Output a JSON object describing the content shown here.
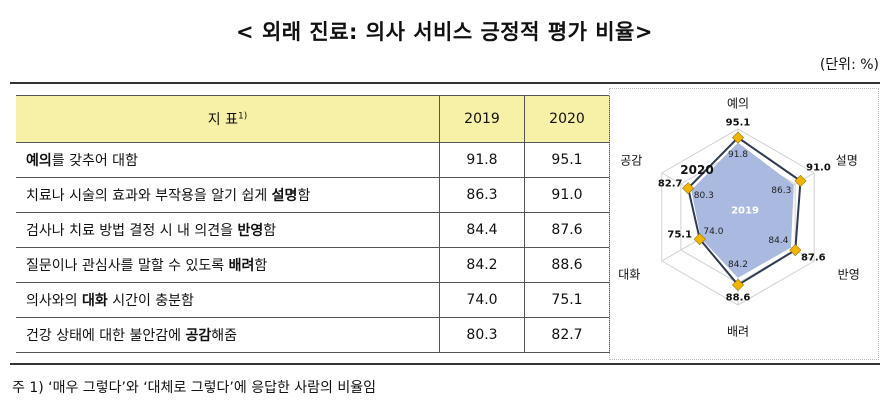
{
  "title": "< 외래 진료: 의사 서비스 긍정적 평가 비율>",
  "unit": "(단위: %)",
  "table": {
    "header": {
      "indicator": "지 표",
      "indicator_sup": "1)",
      "y2019": "2019",
      "y2020": "2020"
    },
    "rows": [
      {
        "pre": "",
        "bold": "예의",
        "post": "를 갖추어 대함",
        "v2019": "91.8",
        "v2020": "95.1"
      },
      {
        "pre": "치료나 시술의 효과와 부작용을 알기 쉽게 ",
        "bold": "설명",
        "post": "함",
        "v2019": "86.3",
        "v2020": "91.0"
      },
      {
        "pre": "검사나 치료 방법 결정 시 내 의견을 ",
        "bold": "반영",
        "post": "함",
        "v2019": "84.4",
        "v2020": "87.6"
      },
      {
        "pre": "질문이나 관심사를 말할 수 있도록 ",
        "bold": "배려",
        "post": "함",
        "v2019": "84.2",
        "v2020": "88.6"
      },
      {
        "pre": "의사와의 ",
        "bold": "대화",
        "post": " 시간이 충분함",
        "v2019": "74.0",
        "v2020": "75.1"
      },
      {
        "pre": "건강 상태에 대한 불안감에 ",
        "bold": "공감",
        "post": "해줌",
        "v2019": "80.3",
        "v2020": "82.7"
      }
    ]
  },
  "note": "주 1) ‘매우 그렇다’와 ‘대체로 그렇다’에 응답한 사람의 비율임",
  "chart_data": {
    "type": "radar",
    "axes": [
      "예의",
      "설명",
      "반영",
      "배려",
      "대화",
      "공감"
    ],
    "series": [
      {
        "name": "2019",
        "values": [
          91.8,
          86.3,
          84.4,
          84.2,
          74.0,
          80.3
        ],
        "color": "#a9b9e0"
      },
      {
        "name": "2020",
        "values": [
          95.1,
          91.0,
          87.6,
          88.6,
          75.1,
          82.7
        ],
        "color": "#2e3a52"
      }
    ],
    "value_labels_2019": [
      "91.8",
      "86.3",
      "84.4",
      "84.2",
      "74.0",
      "80.3"
    ],
    "value_labels_2020": [
      "95.1",
      "91.0",
      "87.6",
      "88.6",
      "75.1",
      "82.7"
    ],
    "marker_color": "#f0b400",
    "range": [
      0,
      100
    ]
  }
}
